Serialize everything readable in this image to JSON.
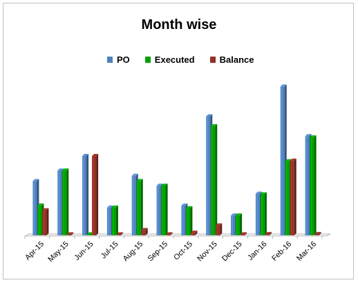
{
  "chart_data": {
    "type": "bar",
    "title": "Month wise",
    "categories": [
      "Apr-15",
      "May-15",
      "Jun-15",
      "Jul-15",
      "Aug-15",
      "Sep-15",
      "Oct-15",
      "Nov-15",
      "Dec-15",
      "Jan-16",
      "Feb-16",
      "Mar-16"
    ],
    "series": [
      {
        "name": "PO",
        "color": "#4f81bd",
        "values": [
          82,
          98,
          120,
          42,
          90,
          75,
          45,
          180,
          30,
          63,
          225,
          150
        ]
      },
      {
        "name": "Executed",
        "color": "#00a000",
        "values": [
          45,
          98,
          0,
          42,
          82,
          75,
          41,
          165,
          30,
          62,
          112,
          148
        ]
      },
      {
        "name": "Balance",
        "color": "#943126",
        "values": [
          38,
          0,
          120,
          0,
          8,
          0,
          4,
          15,
          0,
          2,
          113,
          2
        ]
      }
    ],
    "ylim": [
      0,
      240
    ],
    "grid": false,
    "legend": "top"
  }
}
